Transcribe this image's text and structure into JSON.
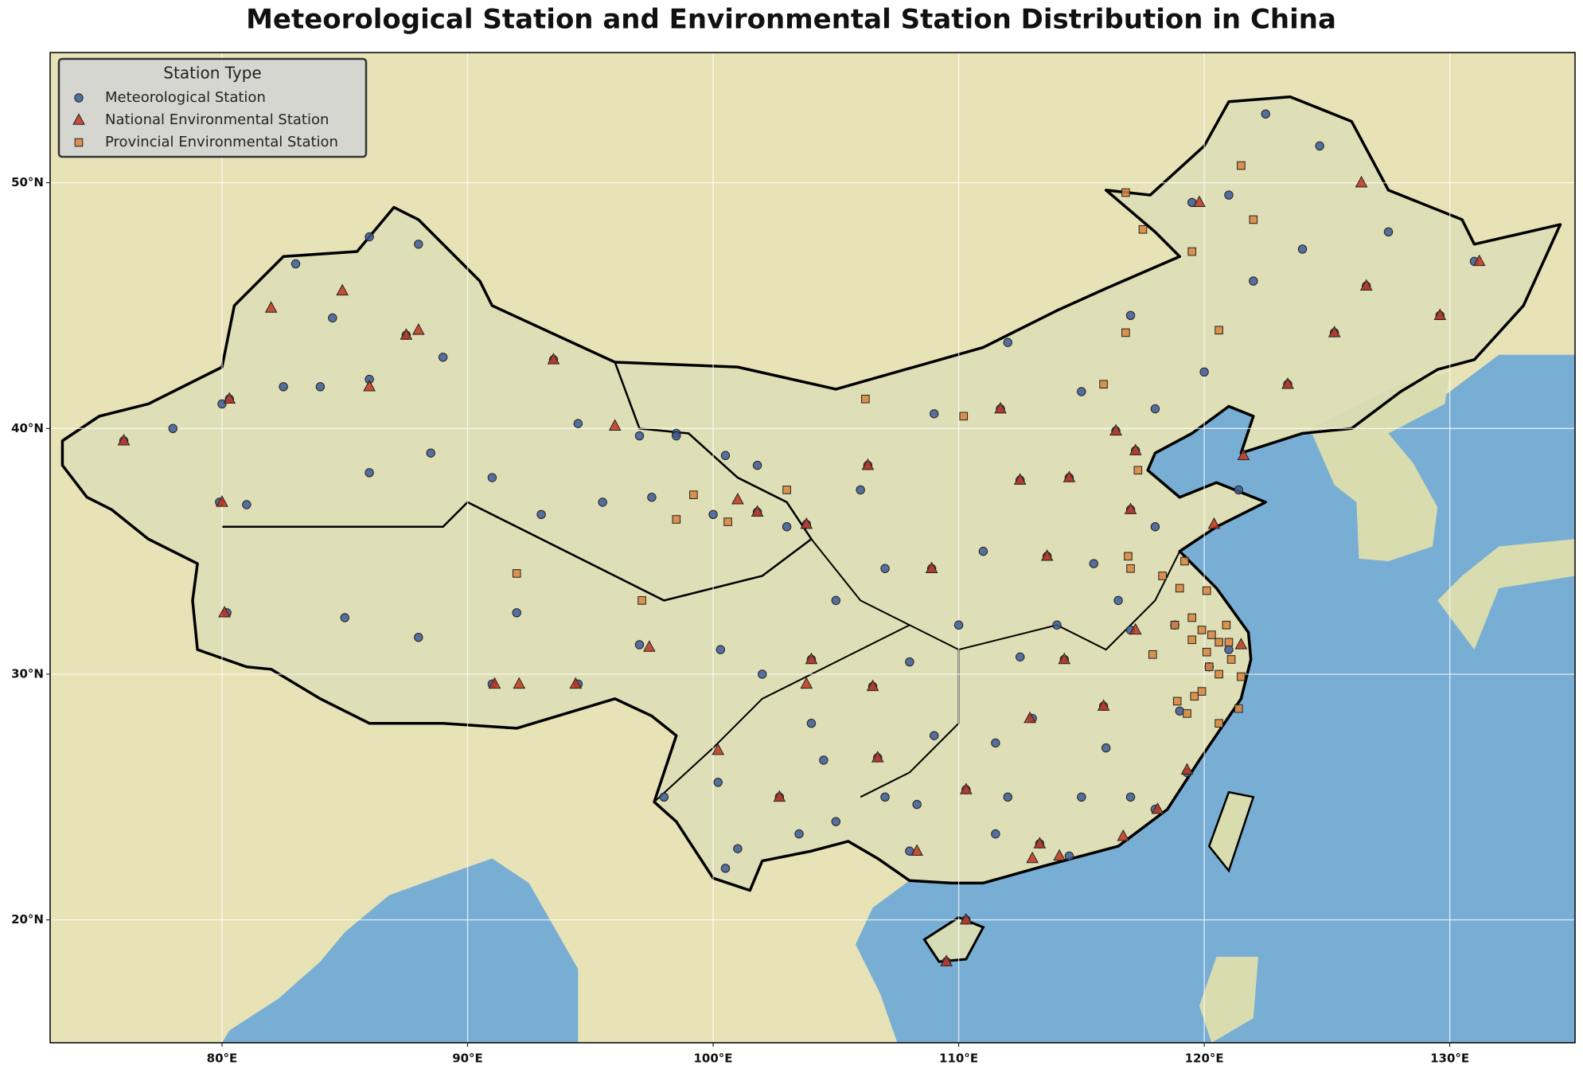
{
  "chart_data": {
    "type": "scatter",
    "title": "Meteorological Station and Environmental Station Distribution in China",
    "xlim": [
      73,
      135.1
    ],
    "ylim": [
      15,
      55.3
    ],
    "xticks": [
      {
        "value": 80,
        "label": "80°E"
      },
      {
        "value": 90,
        "label": "90°E"
      },
      {
        "value": 100,
        "label": "100°E"
      },
      {
        "value": 110,
        "label": "110°E"
      },
      {
        "value": 120,
        "label": "120°E"
      },
      {
        "value": 130,
        "label": "130°E"
      }
    ],
    "yticks": [
      {
        "value": 20,
        "label": "20°N"
      },
      {
        "value": 30,
        "label": "30°N"
      },
      {
        "value": 40,
        "label": "40°N"
      },
      {
        "value": 50,
        "label": "50°N"
      }
    ],
    "grid": true,
    "legend_title": "Station Type",
    "legend": "upper left",
    "series": [
      {
        "name": "Meteorological Station",
        "color": "#3d5a96",
        "marker": "o",
        "x": [
          76,
          78,
          80,
          82.5,
          84,
          86,
          87.5,
          89,
          93.5,
          84.5,
          83,
          86,
          88,
          80.3,
          79.9,
          81,
          86,
          88.5,
          91,
          94.5,
          97,
          98.5,
          93,
          95.5,
          97.5,
          100,
          101.8,
          103,
          92,
          88,
          85,
          80.2,
          91,
          94.5,
          97,
          100.3,
          102,
          104,
          106.5,
          108,
          98,
          100.2,
          102.7,
          104.5,
          106.7,
          108.3,
          110.3,
          111.5,
          113,
          112.5,
          114.3,
          115.9,
          117,
          116.4,
          117.2,
          114.5,
          112.5,
          111.7,
          106.3,
          107,
          108.9,
          113.6,
          117,
          118.8,
          120.2,
          119.3,
          113.3,
          110.3,
          109.5,
          123.4,
          125.3,
          126.6,
          127.5,
          129.6,
          131,
          124,
          121,
          122,
          120,
          118,
          115,
          112,
          117,
          119.5,
          124.7,
          122.5,
          106,
          103.8,
          101.8,
          100.5,
          98.5,
          109,
          111,
          110,
          105,
          104,
          107,
          105,
          112,
          115,
          117,
          114.5,
          118,
          116,
          119,
          121,
          118,
          121.4,
          115.5,
          114,
          116.5,
          109,
          111.5,
          108,
          103.5,
          101,
          100.5
        ],
        "y": [
          39.5,
          40,
          41,
          41.7,
          41.7,
          42,
          43.8,
          42.9,
          42.8,
          44.5,
          46.7,
          47.8,
          47.5,
          41.2,
          37,
          36.9,
          38.2,
          39,
          38,
          40.2,
          39.7,
          39.8,
          36.5,
          37,
          37.2,
          36.5,
          36.6,
          36,
          32.5,
          31.5,
          32.3,
          32.5,
          29.6,
          29.6,
          31.2,
          31,
          30,
          30.6,
          29.5,
          30.5,
          25,
          25.6,
          25,
          26.5,
          26.6,
          24.7,
          25.3,
          27.2,
          28.2,
          30.7,
          30.6,
          28.7,
          31.8,
          39.9,
          39.1,
          38,
          37.9,
          40.8,
          38.5,
          34.3,
          34.3,
          34.8,
          36.7,
          32,
          30.3,
          26,
          23.1,
          20,
          18.3,
          41.8,
          43.9,
          45.8,
          48,
          44.6,
          46.8,
          47.3,
          49.5,
          46,
          42.3,
          40.8,
          41.5,
          43.5,
          44.6,
          49.2,
          51.5,
          52.8,
          37.5,
          36.1,
          38.5,
          38.9,
          39.7,
          40.6,
          35,
          32,
          33,
          28,
          25,
          24,
          25,
          25,
          25,
          22.6,
          24.5,
          27,
          28.5,
          31,
          36,
          37.5,
          34.5,
          32,
          33,
          27.5,
          23.5,
          22.8,
          23.5,
          22.9,
          22.1
        ]
      },
      {
        "name": "National Environmental Station",
        "color": "#c0361f",
        "marker": "^",
        "x": [
          76,
          80.3,
          80,
          87.5,
          88,
          84.9,
          82,
          86,
          93.5,
          96,
          101,
          103.8,
          106.3,
          108.9,
          104,
          106.5,
          103.8,
          102.7,
          106.7,
          108.3,
          110.3,
          113.3,
          113,
          114.1,
          116.7,
          118.1,
          119.3,
          121.5,
          112.9,
          114.3,
          113.6,
          116.4,
          117.2,
          114.5,
          112.5,
          111.7,
          117,
          120.4,
          121.6,
          123.4,
          125.3,
          126.6,
          129.6,
          131.2,
          126.4,
          119.8,
          92.1,
          91.1,
          94.4,
          80.1,
          110.3,
          109.5,
          101.8,
          97.4,
          100.2,
          115.9,
          117.2
        ],
        "y": [
          39.5,
          41.2,
          37,
          43.8,
          44,
          45.6,
          44.9,
          41.7,
          42.8,
          40.1,
          37.1,
          36.1,
          38.5,
          34.3,
          30.6,
          29.5,
          29.6,
          25,
          26.6,
          22.8,
          25.3,
          23.1,
          22.5,
          22.6,
          23.4,
          24.5,
          26.1,
          31.2,
          28.2,
          30.6,
          34.8,
          39.9,
          39.1,
          38,
          37.9,
          40.8,
          36.7,
          36.1,
          38.9,
          41.8,
          43.9,
          45.8,
          44.6,
          46.8,
          50,
          49.2,
          29.6,
          29.6,
          29.6,
          32.5,
          20,
          18.3,
          36.6,
          31.1,
          26.9,
          28.7,
          31.8
        ]
      },
      {
        "name": "Provincial Environmental Station",
        "color": "#d9843c",
        "marker": "s",
        "x": [
          117,
          118.3,
          119.2,
          120.1,
          119,
          118.8,
          119.5,
          120.3,
          120.9,
          121,
          120.6,
          119.9,
          119.5,
          120.2,
          121.5,
          120.6,
          120.6,
          121.4,
          119.6,
          118.9,
          120.1,
          121.1,
          119.9,
          119.3,
          117.9,
          116.9,
          117.3,
          116.8,
          115.9,
          106.2,
          99.2,
          103,
          110.2,
          100.6,
          119.5,
          121.5,
          122,
          117.5,
          120.6,
          116.8,
          97.1,
          92,
          98.5
        ],
        "y": [
          34.3,
          34,
          34.6,
          33.4,
          33.5,
          32,
          32.3,
          31.6,
          32,
          31.3,
          31.3,
          31.8,
          31.4,
          30.3,
          29.9,
          30,
          28,
          28.6,
          29.1,
          28.9,
          30.9,
          30.6,
          29.3,
          28.4,
          30.8,
          34.8,
          38.3,
          43.9,
          41.8,
          41.2,
          37.3,
          37.5,
          40.5,
          36.2,
          47.2,
          50.7,
          48.5,
          48.1,
          44,
          49.6,
          33,
          34.1,
          36.3
        ]
      }
    ]
  }
}
